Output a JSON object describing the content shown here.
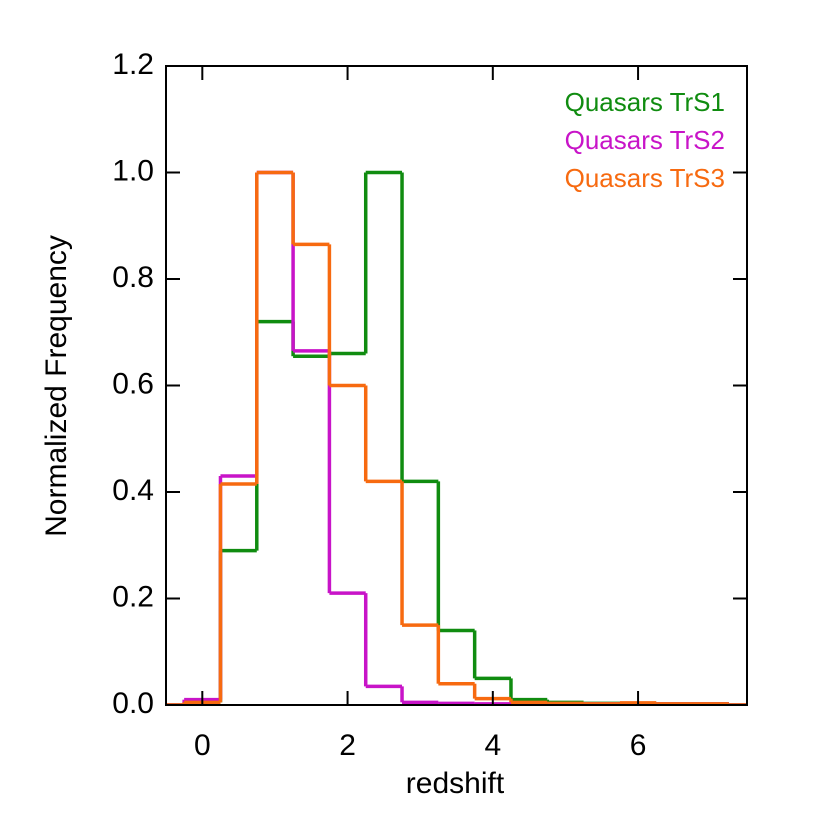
{
  "chart_data": {
    "type": "histogram",
    "xlabel": "redshift",
    "ylabel": "Normalized Frequency",
    "bins": [
      -0.75,
      -0.25,
      0.25,
      0.75,
      1.25,
      1.75,
      2.25,
      2.75,
      3.25,
      3.75,
      4.25,
      4.75,
      5.25,
      5.75,
      6.25,
      6.75,
      7.25,
      7.75
    ],
    "series": [
      {
        "name": "Quasars TrS1",
        "color": "#108c10",
        "values": [
          0,
          0.005,
          0.29,
          0.72,
          0.655,
          0.66,
          1.0,
          0.42,
          0.14,
          0.05,
          0.01,
          0.005,
          0.003,
          0.003,
          0.002,
          0.002,
          0
        ]
      },
      {
        "name": "Quasars TrS2",
        "color": "#c814c8",
        "values": [
          0,
          0.01,
          0.43,
          1.0,
          0.665,
          0.21,
          0.035,
          0.005,
          0.003,
          0.002,
          0.002,
          0.002,
          0.002,
          0.002,
          0.002,
          0.002,
          0
        ]
      },
      {
        "name": "Quasars TrS3",
        "color": "#f76a10",
        "values": [
          0,
          0.005,
          0.415,
          1.0,
          0.865,
          0.6,
          0.42,
          0.15,
          0.04,
          0.012,
          0.005,
          0.003,
          0.002,
          0.004,
          0.002,
          0.002,
          0
        ]
      }
    ],
    "xlim": [
      -0.5,
      7.5
    ],
    "ylim": [
      0,
      1.2
    ],
    "xticks": [
      0,
      2,
      4,
      6
    ],
    "yticks": [
      {
        "value": 0,
        "label": "0.0"
      },
      0.2,
      0.4,
      0.6,
      0.8,
      {
        "value": 1,
        "label": "1.0"
      },
      1.2
    ],
    "legend": "upper right"
  }
}
